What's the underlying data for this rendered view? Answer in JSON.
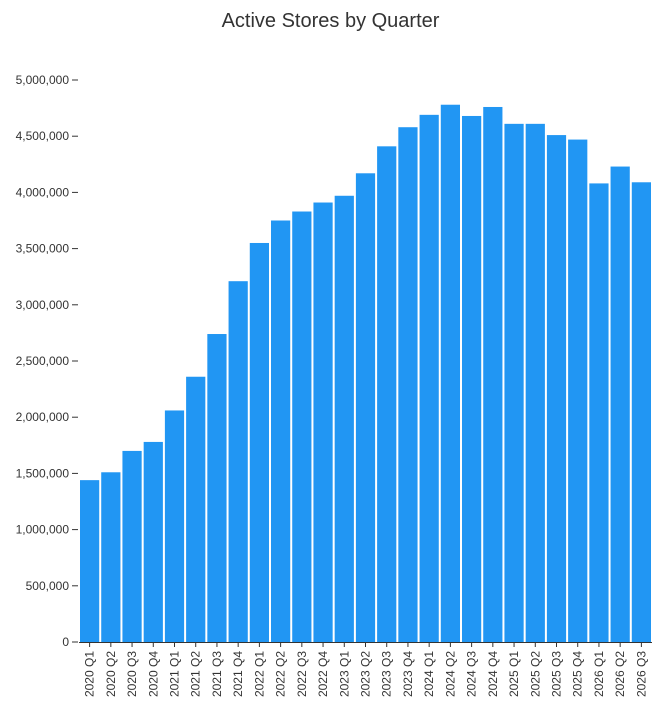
{
  "chart_data": {
    "type": "bar",
    "title": "Active Stores by Quarter",
    "xlabel": "",
    "ylabel": "",
    "ylim": [
      0,
      5000000
    ],
    "yticks": [
      0,
      500000,
      1000000,
      1500000,
      2000000,
      2500000,
      3000000,
      3500000,
      4000000,
      4500000,
      5000000
    ],
    "ytick_labels": [
      "0",
      "500,000",
      "1,000,000",
      "1,500,000",
      "2,000,000",
      "2,500,000",
      "3,000,000",
      "3,500,000",
      "4,000,000",
      "4,500,000",
      "5,000,000"
    ],
    "grid": false,
    "bar_color": "#2196f3",
    "categories": [
      "2020 Q1",
      "2020 Q2",
      "2020 Q3",
      "2020 Q4",
      "2021 Q1",
      "2021 Q2",
      "2021 Q3",
      "2021 Q4",
      "2022 Q1",
      "2022 Q2",
      "2022 Q3",
      "2022 Q4",
      "2023 Q1",
      "2023 Q2",
      "2023 Q3",
      "2023 Q4",
      "2024 Q1",
      "2024 Q2",
      "2024 Q3",
      "2024 Q4",
      "2025 Q1",
      "2025 Q2",
      "2025 Q3",
      "2025 Q4",
      "2026 Q1",
      "2026 Q2",
      "2026 Q3"
    ],
    "values": [
      1440000,
      1510000,
      1700000,
      1780000,
      2060000,
      2360000,
      2740000,
      3210000,
      3550000,
      3750000,
      3830000,
      3910000,
      3970000,
      4170000,
      4410000,
      4580000,
      4690000,
      4780000,
      4680000,
      4760000,
      4610000,
      4610000,
      4510000,
      4470000,
      4080000,
      4230000,
      4090000
    ]
  }
}
